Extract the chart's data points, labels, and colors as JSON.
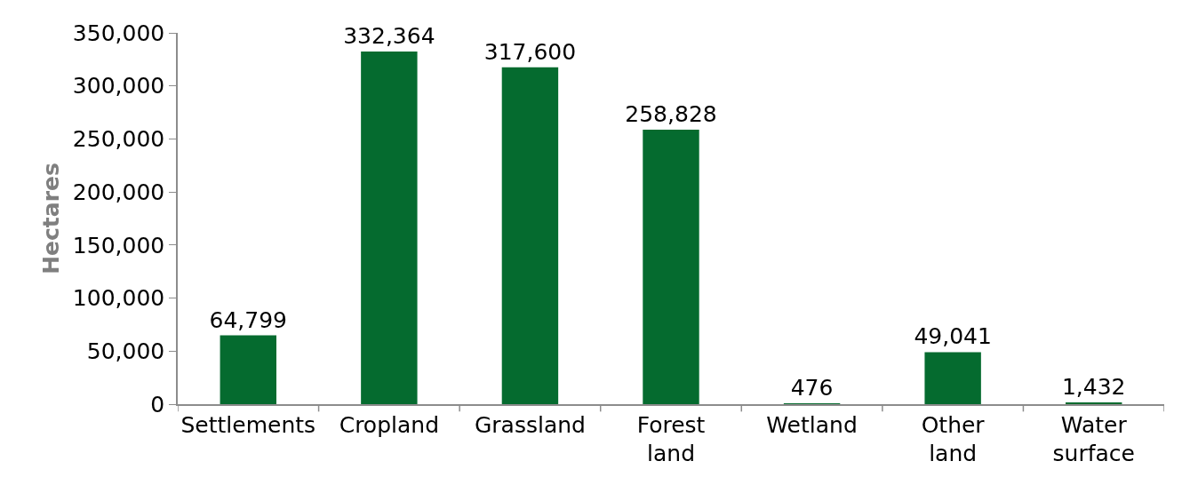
{
  "chart_data": {
    "type": "bar",
    "ylabel": "Hectares",
    "categories": [
      "Settlements",
      "Cropland",
      "Grassland",
      "Forest land",
      "Wetland",
      "Other land",
      "Water surface"
    ],
    "values": [
      64799,
      332364,
      317600,
      258828,
      476,
      49041,
      1432
    ],
    "value_labels": [
      "64,799",
      "332,364",
      "317,600",
      "258,828",
      "476",
      "49,041",
      "1,432"
    ],
    "color": "#056b2f",
    "ylim": [
      0,
      350000
    ],
    "yticks": [
      {
        "value": 0,
        "label": "0"
      },
      {
        "value": 50000,
        "label": "50,000"
      },
      {
        "value": 100000,
        "label": "100,000"
      },
      {
        "value": 150000,
        "label": "150,000"
      },
      {
        "value": 200000,
        "label": "200,000"
      },
      {
        "value": 250000,
        "label": "250,000"
      },
      {
        "value": 300000,
        "label": "300,000"
      },
      {
        "value": 350000,
        "label": "350,000"
      }
    ],
    "grid": false
  }
}
